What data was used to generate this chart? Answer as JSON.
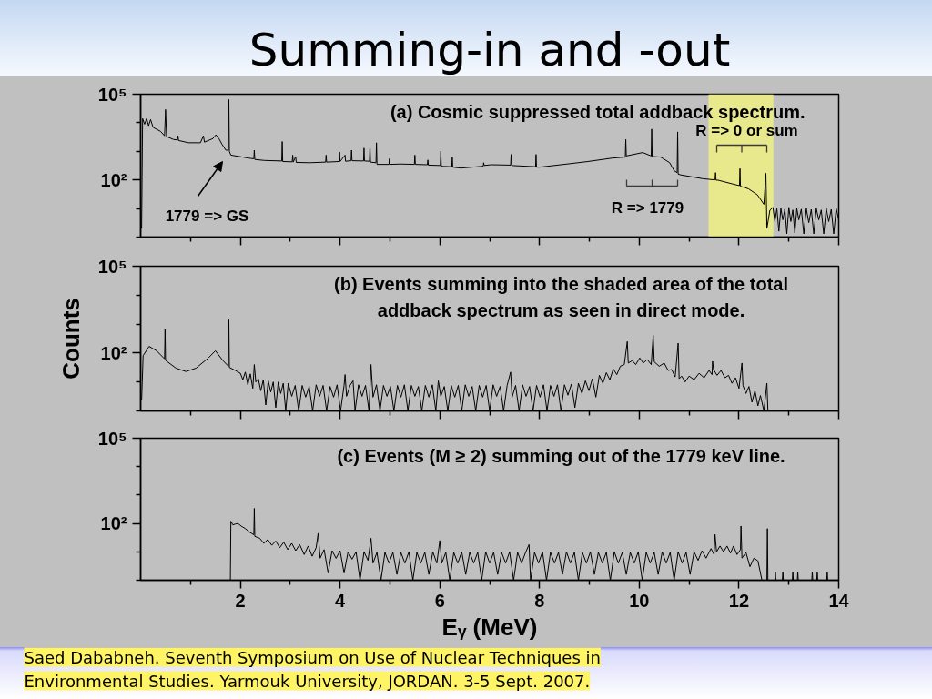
{
  "chart_data": [
    {
      "type": "line",
      "title": "Summing-in and -out",
      "subtitle": "(a) Cosmic suppressed total addback spectrum.",
      "x": [
        0.02,
        0.04,
        0.08,
        0.12,
        0.16,
        0.2,
        0.25,
        0.4,
        0.48,
        0.5,
        0.52,
        0.66,
        0.74,
        0.75,
        0.76,
        0.96,
        1.2,
        1.26,
        1.28,
        1.45,
        1.51,
        1.57,
        1.63,
        1.71,
        1.76,
        1.77,
        1.78,
        1.81,
        1.87,
        2.17,
        2.27,
        2.28,
        2.29,
        2.48,
        2.83,
        2.84,
        2.85,
        3.04,
        3.05,
        3.06,
        3.11,
        3.12,
        3.39,
        3.71,
        3.72,
        3.73,
        3.98,
        3.99,
        4.0,
        4.1,
        4.11,
        4.22,
        4.23,
        4.24,
        4.47,
        4.48,
        4.49,
        4.59,
        4.6,
        4.61,
        4.72,
        4.73,
        4.74,
        4.98,
        4.99,
        5.0,
        5.21,
        5.49,
        5.5,
        5.51,
        5.75,
        5.76,
        5.77,
        6.01,
        6.02,
        6.03,
        6.24,
        6.25,
        6.26,
        6.42,
        6.87,
        6.88,
        6.89,
        7.03,
        7.42,
        7.43,
        7.44,
        7.92,
        7.93,
        7.94,
        8.0,
        8.55,
        8.97,
        9.46,
        9.72,
        9.73,
        9.74,
        10.07,
        10.24,
        10.25,
        10.26,
        10.43,
        10.61,
        10.7,
        10.76,
        10.77,
        10.78,
        10.83,
        11.28,
        11.52,
        11.53,
        11.54,
        11.58,
        11.89,
        12.01,
        12.02,
        12.03,
        12.19,
        12.37,
        12.5,
        12.54,
        12.56,
        12.62,
        12.68,
        12.72,
        12.76,
        12.8,
        12.84,
        12.88,
        12.92,
        12.96,
        13.0,
        13.04,
        13.08,
        13.12,
        13.16,
        13.2,
        13.25,
        13.3,
        13.35,
        13.4,
        13.45,
        13.5,
        13.55,
        13.6,
        13.65,
        13.7,
        13.75,
        13.8,
        13.85,
        13.9,
        13.95,
        14.0
      ],
      "values": [
        2.0,
        14000,
        8900,
        14000,
        7900,
        13000,
        6900,
        5000,
        3500,
        29000,
        3300,
        2600,
        2500,
        3500,
        2400,
        2000,
        2000,
        3500,
        2100,
        2800,
        3800,
        2800,
        1800,
        1100,
        1100,
        65000,
        1000,
        740,
        710,
        580,
        550,
        1100,
        520,
        480,
        460,
        2200,
        440,
        430,
        740,
        420,
        660,
        410,
        400,
        420,
        740,
        420,
        440,
        950,
        440,
        740,
        450,
        470,
        1100,
        470,
        460,
        1300,
        460,
        450,
        1500,
        420,
        400,
        2000,
        350,
        350,
        550,
        350,
        360,
        350,
        740,
        350,
        340,
        500,
        330,
        320,
        1000,
        300,
        290,
        650,
        280,
        260,
        300,
        400,
        320,
        340,
        330,
        780,
        320,
        290,
        780,
        280,
        280,
        360,
        440,
        580,
        630,
        2600,
        690,
        910,
        690,
        6000,
        660,
        630,
        400,
        210,
        180,
        4800,
        160,
        150,
        110,
        100,
        180,
        98,
        98,
        71,
        63,
        250,
        60,
        49,
        30,
        14,
        170,
        2.0,
        8.7,
        11,
        3.5,
        10,
        1.6,
        10,
        4,
        9.5,
        1.3,
        11,
        3.5,
        8.9,
        1.4,
        10,
        4,
        9.5,
        1.3,
        10,
        3.2,
        9.3,
        1.3,
        10,
        4,
        8.9,
        1.3,
        10,
        3.5,
        9.3,
        1.3,
        10,
        4
      ],
      "color": "#000000",
      "xlim": [
        0,
        14
      ],
      "xticks": [
        {
          "value": 1,
          "label": null
        },
        2,
        {
          "value": 3,
          "label": null
        },
        4,
        {
          "value": 5,
          "label": null
        },
        6,
        {
          "value": 7,
          "label": null
        },
        8,
        {
          "value": 9,
          "label": null
        },
        10,
        {
          "value": 11,
          "label": null
        },
        12,
        {
          "value": 13,
          "label": null
        },
        14
      ],
      "ylim": [
        1,
        100000
      ],
      "yticks": [
        {
          "value": 1,
          "label": null
        },
        {
          "value": 10,
          "label": null
        },
        {
          "value": 100,
          "label": "10²"
        },
        {
          "value": 1000,
          "label": null
        },
        {
          "value": 10000,
          "label": null
        },
        {
          "value": 100000,
          "label": "10⁵"
        }
      ],
      "log": true,
      "tick_labels": "y",
      "bands": [
        {
          "axis": "x",
          "from": 11.39,
          "to": 12.69,
          "color": "#e8e88c"
        }
      ],
      "annotations": [
        "1779 => GS",
        "R => 1779",
        "R => 0 or sum"
      ]
    },
    {
      "type": "line",
      "subtitle": "(b) Events summing into the shaded area of the total addback spectrum as seen in direct mode.",
      "ylabel": "Counts",
      "x": [
        0.02,
        0.05,
        0.17,
        0.32,
        0.48,
        0.49,
        0.5,
        0.71,
        0.91,
        1.11,
        1.36,
        1.5,
        1.65,
        1.76,
        1.77,
        1.78,
        1.9,
        2.0,
        2.05,
        2.1,
        2.15,
        2.2,
        2.25,
        2.28,
        2.31,
        2.36,
        2.41,
        2.46,
        2.51,
        2.56,
        2.61,
        2.66,
        2.71,
        2.76,
        2.81,
        2.86,
        2.91,
        2.96,
        3.03,
        3.1,
        3.17,
        3.24,
        3.31,
        3.38,
        3.45,
        3.52,
        3.59,
        3.66,
        3.73,
        3.8,
        3.87,
        3.94,
        4.01,
        4.08,
        4.1,
        4.13,
        4.2,
        4.26,
        4.3,
        4.37,
        4.44,
        4.51,
        4.58,
        4.62,
        4.66,
        4.73,
        4.8,
        4.87,
        4.94,
        5.01,
        5.08,
        5.15,
        5.22,
        5.29,
        5.36,
        5.43,
        5.5,
        5.57,
        5.64,
        5.71,
        5.78,
        5.85,
        5.92,
        5.97,
        6.02,
        6.09,
        6.16,
        6.23,
        6.3,
        6.37,
        6.44,
        6.51,
        6.58,
        6.65,
        6.72,
        6.79,
        6.86,
        6.93,
        7.0,
        7.07,
        7.14,
        7.21,
        7.28,
        7.35,
        7.42,
        7.45,
        7.52,
        7.59,
        7.66,
        7.73,
        7.8,
        7.87,
        7.94,
        8.01,
        8.08,
        8.15,
        8.22,
        8.29,
        8.36,
        8.43,
        8.5,
        8.57,
        8.64,
        8.71,
        8.78,
        8.85,
        8.92,
        8.99,
        9.06,
        9.13,
        9.2,
        9.27,
        9.34,
        9.41,
        9.48,
        9.55,
        9.62,
        9.7,
        9.76,
        9.78,
        9.86,
        9.93,
        10.01,
        10.08,
        10.16,
        10.24,
        10.28,
        10.3,
        10.4,
        10.5,
        10.58,
        10.65,
        10.72,
        10.78,
        10.8,
        10.85,
        10.92,
        11.0,
        11.1,
        11.2,
        11.3,
        11.4,
        11.46,
        11.47,
        11.49,
        11.56,
        11.64,
        11.72,
        11.79,
        11.86,
        11.93,
        12.0,
        12.06,
        12.08,
        12.14,
        12.2,
        12.26,
        12.32,
        12.38,
        12.43,
        12.5,
        12.56,
        12.58
      ],
      "values": [
        2.3,
        81,
        170,
        120,
        63,
        650,
        56,
        30,
        23,
        30,
        68,
        120,
        55,
        35,
        1400,
        32,
        25,
        20,
        12,
        22,
        8,
        19,
        6,
        40,
        10,
        13,
        5,
        12,
        1.6,
        11,
        4.5,
        10,
        1.3,
        10,
        4,
        9,
        1,
        9,
        3.2,
        7.6,
        1,
        7.6,
        3,
        7,
        1,
        8,
        3.2,
        7.6,
        1,
        7,
        3,
        8,
        1,
        7.6,
        18,
        3.2,
        7.6,
        11,
        1,
        8,
        3.2,
        7.6,
        1,
        40,
        3,
        8,
        1,
        7.6,
        3.2,
        7,
        1,
        7.6,
        3,
        8,
        1,
        7.6,
        3.2,
        7,
        1,
        7.6,
        3,
        8,
        1,
        11,
        3.2,
        7,
        1,
        7.6,
        3,
        7.6,
        1,
        8,
        3.2,
        7,
        1,
        7.6,
        3,
        7.6,
        1,
        8,
        3.2,
        7,
        1,
        7.6,
        22,
        3,
        7.6,
        1,
        8,
        3.2,
        7,
        1,
        7.6,
        3,
        8,
        1,
        7.6,
        3.2,
        8,
        1,
        8,
        3.5,
        8.5,
        1.3,
        9,
        4,
        11,
        5,
        13,
        3,
        17,
        9,
        21,
        12,
        28,
        18,
        35,
        40,
        250,
        45,
        55,
        40,
        68,
        45,
        60,
        40,
        410,
        50,
        35,
        45,
        25,
        27,
        15,
        220,
        13,
        16,
        10,
        16,
        12,
        20,
        14,
        25,
        18,
        52,
        27,
        17,
        25,
        14,
        17,
        9,
        14,
        6,
        45,
        7.6,
        4,
        7,
        2,
        5,
        1.5,
        3.4,
        1,
        9.1,
        1
      ],
      "color": "#000000",
      "xlim": [
        0,
        14
      ],
      "xticks": [
        {
          "value": 1,
          "label": null
        },
        2,
        {
          "value": 3,
          "label": null
        },
        4,
        {
          "value": 5,
          "label": null
        },
        6,
        {
          "value": 7,
          "label": null
        },
        8,
        {
          "value": 9,
          "label": null
        },
        10,
        {
          "value": 11,
          "label": null
        },
        12,
        {
          "value": 13,
          "label": null
        },
        14
      ],
      "ylim": [
        1,
        100000
      ],
      "yticks": [
        {
          "value": 1,
          "label": null
        },
        {
          "value": 10,
          "label": null
        },
        {
          "value": 100,
          "label": "10²"
        },
        {
          "value": 1000,
          "label": null
        },
        {
          "value": 10000,
          "label": null
        },
        {
          "value": 100000,
          "label": "10⁵"
        }
      ],
      "log": true,
      "tick_labels": "y"
    },
    {
      "type": "line",
      "subtitle": "(c) Events (M ≥ 2) summing out of the 1779 keV line.",
      "xlabel": "Eᵧ (MeV)",
      "x": [
        1.8,
        1.81,
        1.85,
        1.9,
        1.95,
        2.02,
        2.1,
        2.18,
        2.27,
        2.28,
        2.29,
        2.39,
        2.47,
        2.55,
        2.63,
        2.71,
        2.79,
        2.87,
        2.95,
        3.03,
        3.11,
        3.19,
        3.28,
        3.36,
        3.44,
        3.52,
        3.56,
        3.6,
        3.68,
        3.76,
        3.84,
        3.92,
        4.0,
        4.08,
        4.16,
        4.24,
        4.32,
        4.4,
        4.48,
        4.56,
        4.62,
        4.66,
        4.74,
        4.82,
        4.9,
        4.98,
        5.06,
        5.14,
        5.22,
        5.3,
        5.38,
        5.46,
        5.54,
        5.62,
        5.7,
        5.78,
        5.86,
        5.94,
        6.0,
        6.04,
        6.12,
        6.2,
        6.28,
        6.36,
        6.44,
        6.52,
        6.6,
        6.68,
        6.76,
        6.84,
        6.92,
        7.0,
        7.08,
        7.16,
        7.24,
        7.32,
        7.4,
        7.48,
        7.56,
        7.64,
        7.72,
        7.79,
        7.82,
        7.9,
        7.98,
        8.06,
        8.14,
        8.22,
        8.3,
        8.38,
        8.46,
        8.54,
        8.62,
        8.7,
        8.78,
        8.86,
        8.94,
        9.02,
        9.1,
        9.18,
        9.26,
        9.34,
        9.42,
        9.5,
        9.58,
        9.66,
        9.74,
        9.82,
        9.9,
        9.98,
        10.06,
        10.14,
        10.22,
        10.3,
        10.38,
        10.46,
        10.54,
        10.62,
        10.7,
        10.78,
        10.86,
        10.94,
        11.02,
        11.1,
        11.18,
        11.26,
        11.34,
        11.44,
        11.5,
        11.52,
        11.55,
        11.62,
        11.69,
        11.76,
        11.83,
        11.89,
        11.96,
        12.03,
        12.04,
        12.06,
        12.14,
        12.22,
        12.3,
        12.38,
        12.46,
        12.56,
        12.57,
        12.58,
        12.72,
        12.73,
        12.74,
        12.87,
        12.88,
        12.89,
        13.07,
        13.08,
        13.09,
        13.17,
        13.18,
        13.19,
        13.46,
        13.47,
        13.48,
        13.56,
        13.57,
        13.58,
        13.76,
        13.77,
        13.78
      ],
      "values": [
        1,
        120,
        89,
        95,
        100,
        80,
        66,
        50,
        40,
        340,
        35,
        30,
        20,
        27,
        17,
        24,
        14,
        22,
        12,
        20,
        11,
        18,
        8,
        16,
        7,
        14,
        45,
        6,
        12,
        1.8,
        11,
        5.9,
        11,
        1.8,
        10,
        5.5,
        10,
        1,
        10,
        5,
        30,
        4,
        9.5,
        1,
        9.5,
        4,
        9.5,
        1.6,
        9.5,
        4,
        10,
        1,
        9.5,
        4,
        9.5,
        1.6,
        10,
        4,
        25,
        4,
        9.5,
        1,
        9.5,
        4,
        10,
        1.6,
        9.5,
        4,
        9.5,
        1,
        10,
        4,
        9.5,
        1.6,
        9.5,
        4,
        10,
        1,
        9.5,
        4,
        9.5,
        18,
        1,
        9.5,
        4,
        10,
        1,
        9.5,
        4,
        9.5,
        1.6,
        10,
        4,
        9.5,
        1,
        9.5,
        4,
        10,
        1.6,
        9.5,
        4,
        9.5,
        1,
        10,
        4,
        9.5,
        1.6,
        9.5,
        4,
        10,
        1,
        9.5,
        4,
        9.5,
        1.6,
        10,
        4,
        9.5,
        1,
        10,
        4,
        9.5,
        1.6,
        10,
        5,
        11,
        6,
        13,
        8,
        41,
        10,
        16,
        10,
        16,
        9,
        16,
        8,
        12,
        81,
        6,
        9.5,
        3,
        6,
        4.8,
        1,
        1,
        66,
        1,
        1,
        2,
        1,
        1,
        2,
        1,
        1,
        2,
        1,
        1,
        2,
        1,
        1,
        2,
        1,
        1,
        2,
        1,
        1,
        2,
        1
      ],
      "color": "#000000",
      "xlim": [
        0,
        14
      ],
      "xticks": [
        {
          "value": 1,
          "label": null
        },
        2,
        {
          "value": 3,
          "label": null
        },
        4,
        {
          "value": 5,
          "label": null
        },
        6,
        {
          "value": 7,
          "label": null
        },
        8,
        {
          "value": 9,
          "label": null
        },
        10,
        {
          "value": 11,
          "label": null
        },
        12,
        {
          "value": 13,
          "label": null
        },
        14
      ],
      "ylim": [
        1,
        100000
      ],
      "yticks": [
        {
          "value": 1,
          "label": null
        },
        {
          "value": 10,
          "label": null
        },
        {
          "value": 100,
          "label": "10²"
        },
        {
          "value": 1000,
          "label": null
        },
        {
          "value": 10000,
          "label": null
        },
        {
          "value": 100000,
          "label": "10⁵"
        }
      ],
      "log": true,
      "annotations": [
        "Saed Dababneh. Seventh Symposium on Use of Nuclear Techniques in Environmental Studies. Yarmouk University, JORDAN. 3-5 Sept. 2007."
      ]
    }
  ]
}
